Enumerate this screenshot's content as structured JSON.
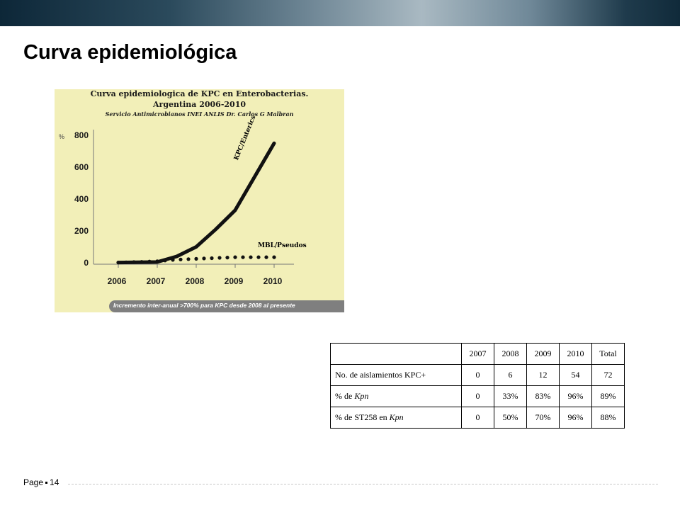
{
  "slide": {
    "title": "Curva epidemiológica",
    "footer_label": "Page",
    "page_number": "14"
  },
  "chart_data": {
    "type": "line",
    "title": "Curva epidemiologica de KPC en Enterobacterias.",
    "subtitle": "Argentina 2006-2010",
    "source": "Servicio Antimicrobianos INEI ANLIS Dr. Carlos G Malbran",
    "ylabel": "%",
    "xlabel": "",
    "ylim": [
      0,
      800
    ],
    "yticks": [
      "0",
      "200",
      "400",
      "600",
      "800"
    ],
    "x": [
      "2006",
      "2007",
      "2008",
      "2009",
      "2010"
    ],
    "series": [
      {
        "name": "KPC/Enterics",
        "style": "solid",
        "color": "#111111",
        "points": [
          [
            2006.0,
            2
          ],
          [
            2006.5,
            3
          ],
          [
            2007.0,
            5
          ],
          [
            2007.5,
            40
          ],
          [
            2008.0,
            100
          ],
          [
            2008.5,
            210
          ],
          [
            2009.0,
            330
          ],
          [
            2009.5,
            540
          ],
          [
            2010.0,
            750
          ]
        ]
      },
      {
        "name": "MBL/Pseudos",
        "style": "dotted",
        "color": "#111111",
        "points": [
          [
            2006.0,
            2
          ],
          [
            2006.5,
            5
          ],
          [
            2007.0,
            10
          ],
          [
            2007.5,
            20
          ],
          [
            2008.0,
            25
          ],
          [
            2008.5,
            30
          ],
          [
            2009.0,
            35
          ],
          [
            2009.5,
            35
          ],
          [
            2010.0,
            35
          ]
        ]
      }
    ],
    "banner": "Incremento inter-anual >700% para KPC desde 2008 al presente",
    "background_color": "#f2efb8"
  },
  "table": {
    "headers": [
      "",
      "2007",
      "2008",
      "2009",
      "2010",
      "Total"
    ],
    "rows": [
      {
        "label": "No. de aislamientos KPC+",
        "label_italic": "",
        "cells": [
          "0",
          "6",
          "12",
          "54",
          "72"
        ]
      },
      {
        "label": "% de ",
        "label_italic": "Kpn",
        "cells": [
          "0",
          "33%",
          "83%",
          "96%",
          "89%"
        ]
      },
      {
        "label": "% de ST258 en ",
        "label_italic": "Kpn",
        "cells": [
          "0",
          "50%",
          "70%",
          "96%",
          "88%"
        ]
      }
    ]
  }
}
